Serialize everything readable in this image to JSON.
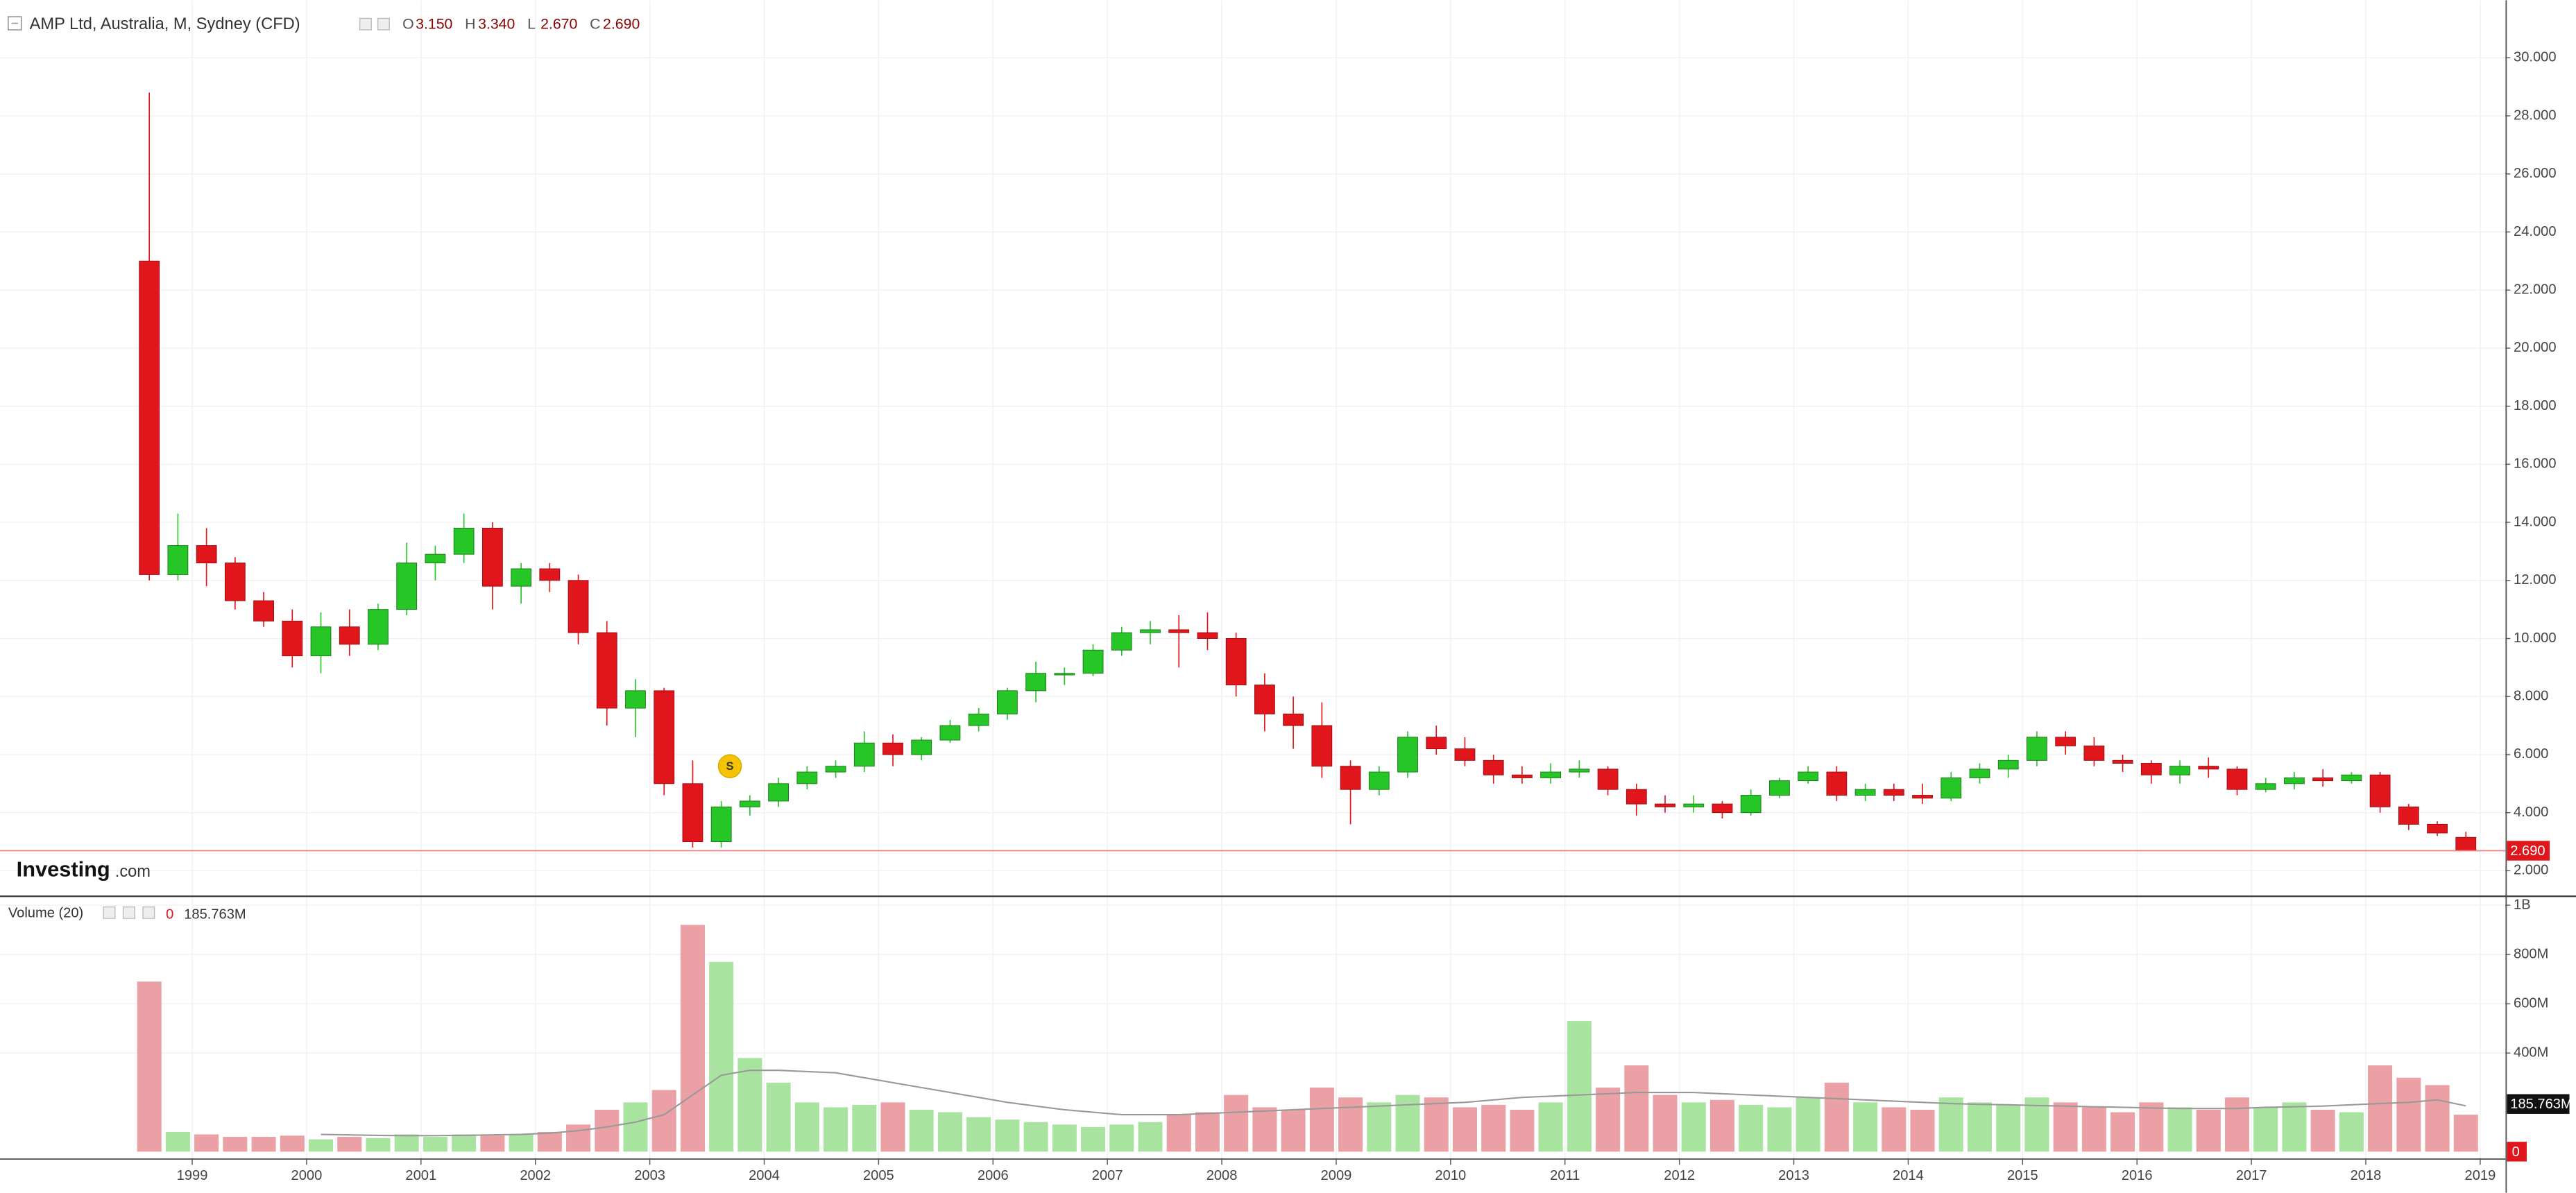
{
  "header": {
    "title": "AMP Ltd, Australia, M, Sydney (CFD)",
    "ohlc": [
      {
        "key": "O",
        "text": "3.150"
      },
      {
        "key": "H",
        "text": "3.340"
      },
      {
        "key": "L",
        "text": "2.670"
      },
      {
        "key": "C",
        "text": "2.690"
      }
    ]
  },
  "logo": {
    "brand": "Investing",
    "suffix": ".com"
  },
  "volume_legend": {
    "title": "Volume (20)",
    "current": "0",
    "ma": "185.763M"
  },
  "chart_data": [
    {
      "type": "candlestick",
      "x": [
        1998.5,
        1998.75,
        1999,
        1999.25,
        1999.5,
        1999.75,
        2000,
        2000.25,
        2000.5,
        2000.75,
        2001,
        2001.25,
        2001.5,
        2001.75,
        2002,
        2002.25,
        2002.5,
        2002.75,
        2003,
        2003.25,
        2003.5,
        2003.75,
        2004,
        2004.25,
        2004.5,
        2004.75,
        2005,
        2005.25,
        2005.5,
        2005.75,
        2006,
        2006.25,
        2006.5,
        2006.75,
        2007,
        2007.25,
        2007.5,
        2007.75,
        2008,
        2008.25,
        2008.5,
        2008.75,
        2009,
        2009.25,
        2009.5,
        2009.75,
        2010,
        2010.25,
        2010.5,
        2010.75,
        2011,
        2011.25,
        2011.5,
        2011.75,
        2012,
        2012.25,
        2012.5,
        2012.75,
        2013,
        2013.25,
        2013.5,
        2013.75,
        2014,
        2014.25,
        2014.5,
        2014.75,
        2015,
        2015.25,
        2015.5,
        2015.75,
        2016,
        2016.25,
        2016.5,
        2016.75,
        2017,
        2017.25,
        2017.5,
        2017.75,
        2018,
        2018.25,
        2018.5,
        2018.75
      ],
      "ohlc": [
        [
          23.0,
          28.8,
          12.0,
          12.2
        ],
        [
          12.2,
          14.3,
          12.0,
          13.2
        ],
        [
          13.2,
          13.8,
          11.8,
          12.6
        ],
        [
          12.6,
          12.8,
          11.0,
          11.3
        ],
        [
          11.3,
          11.6,
          10.4,
          10.6
        ],
        [
          10.6,
          11.0,
          9.0,
          9.4
        ],
        [
          9.4,
          10.9,
          8.8,
          10.4
        ],
        [
          10.4,
          11.0,
          9.4,
          9.8
        ],
        [
          9.8,
          11.2,
          9.6,
          11.0
        ],
        [
          11.0,
          13.3,
          10.8,
          12.6
        ],
        [
          12.6,
          13.2,
          12.0,
          12.9
        ],
        [
          12.9,
          14.3,
          12.6,
          13.8
        ],
        [
          13.8,
          14.0,
          11.0,
          11.8
        ],
        [
          11.8,
          12.6,
          11.2,
          12.4
        ],
        [
          12.4,
          12.6,
          11.6,
          12.0
        ],
        [
          12.0,
          12.2,
          9.8,
          10.2
        ],
        [
          10.2,
          10.6,
          7.0,
          7.6
        ],
        [
          7.6,
          8.6,
          6.6,
          8.2
        ],
        [
          8.2,
          8.3,
          4.6,
          5.0
        ],
        [
          5.0,
          5.8,
          2.8,
          3.0
        ],
        [
          3.0,
          4.4,
          2.8,
          4.2
        ],
        [
          4.2,
          4.6,
          3.9,
          4.4
        ],
        [
          4.4,
          5.2,
          4.2,
          5.0
        ],
        [
          5.0,
          5.6,
          4.8,
          5.4
        ],
        [
          5.4,
          5.8,
          5.2,
          5.6
        ],
        [
          5.6,
          6.8,
          5.4,
          6.4
        ],
        [
          6.4,
          6.7,
          5.6,
          6.0
        ],
        [
          6.0,
          6.6,
          5.8,
          6.5
        ],
        [
          6.5,
          7.2,
          6.4,
          7.0
        ],
        [
          7.0,
          7.6,
          6.8,
          7.4
        ],
        [
          7.4,
          8.3,
          7.2,
          8.2
        ],
        [
          8.2,
          9.2,
          7.8,
          8.8
        ],
        [
          8.8,
          9.0,
          8.4,
          8.8
        ],
        [
          8.8,
          9.8,
          8.7,
          9.6
        ],
        [
          9.6,
          10.4,
          9.4,
          10.2
        ],
        [
          10.2,
          10.6,
          9.8,
          10.3
        ],
        [
          10.3,
          10.8,
          9.0,
          10.2
        ],
        [
          10.2,
          10.9,
          9.6,
          10.0
        ],
        [
          10.0,
          10.2,
          8.0,
          8.4
        ],
        [
          8.4,
          8.8,
          6.8,
          7.4
        ],
        [
          7.4,
          8.0,
          6.2,
          7.0
        ],
        [
          7.0,
          7.8,
          5.2,
          5.6
        ],
        [
          5.6,
          5.8,
          3.6,
          4.8
        ],
        [
          4.8,
          5.6,
          4.6,
          5.4
        ],
        [
          5.4,
          6.8,
          5.2,
          6.6
        ],
        [
          6.6,
          7.0,
          6.0,
          6.2
        ],
        [
          6.2,
          6.6,
          5.6,
          5.8
        ],
        [
          5.8,
          6.0,
          5.0,
          5.3
        ],
        [
          5.3,
          5.6,
          5.0,
          5.2
        ],
        [
          5.2,
          5.7,
          5.0,
          5.4
        ],
        [
          5.4,
          5.8,
          5.2,
          5.5
        ],
        [
          5.5,
          5.6,
          4.6,
          4.8
        ],
        [
          4.8,
          5.0,
          3.9,
          4.3
        ],
        [
          4.3,
          4.6,
          4.0,
          4.2
        ],
        [
          4.2,
          4.6,
          4.0,
          4.3
        ],
        [
          4.3,
          4.4,
          3.8,
          4.0
        ],
        [
          4.0,
          4.8,
          3.9,
          4.6
        ],
        [
          4.6,
          5.2,
          4.5,
          5.1
        ],
        [
          5.1,
          5.6,
          5.0,
          5.4
        ],
        [
          5.4,
          5.6,
          4.4,
          4.6
        ],
        [
          4.6,
          5.0,
          4.4,
          4.8
        ],
        [
          4.8,
          5.0,
          4.4,
          4.6
        ],
        [
          4.6,
          5.0,
          4.3,
          4.5
        ],
        [
          4.5,
          5.4,
          4.4,
          5.2
        ],
        [
          5.2,
          5.7,
          5.0,
          5.5
        ],
        [
          5.5,
          6.0,
          5.2,
          5.8
        ],
        [
          5.8,
          6.8,
          5.6,
          6.6
        ],
        [
          6.6,
          6.8,
          6.0,
          6.3
        ],
        [
          6.3,
          6.6,
          5.6,
          5.8
        ],
        [
          5.8,
          6.0,
          5.4,
          5.7
        ],
        [
          5.7,
          5.8,
          5.0,
          5.3
        ],
        [
          5.3,
          5.8,
          5.0,
          5.6
        ],
        [
          5.6,
          5.9,
          5.2,
          5.5
        ],
        [
          5.5,
          5.6,
          4.6,
          4.8
        ],
        [
          4.8,
          5.2,
          4.7,
          5.0
        ],
        [
          5.0,
          5.4,
          4.8,
          5.2
        ],
        [
          5.2,
          5.5,
          4.9,
          5.1
        ],
        [
          5.1,
          5.4,
          5.0,
          5.3
        ],
        [
          5.3,
          5.4,
          4.0,
          4.2
        ],
        [
          4.2,
          4.3,
          3.4,
          3.6
        ],
        [
          3.6,
          3.7,
          3.2,
          3.3
        ],
        [
          3.15,
          3.34,
          2.67,
          2.69
        ]
      ],
      "up_color": "#26c626",
      "down_color": "#e0161c",
      "xlim": [
        1997.32,
        2019.22
      ],
      "xticks": [
        1999,
        2000,
        2001,
        2002,
        2003,
        2004,
        2005,
        2006,
        2007,
        2008,
        2009,
        2010,
        2011,
        2012,
        2013,
        2014,
        2015,
        2016,
        2017,
        2018,
        2019
      ],
      "ylim": [
        1.15,
        31.98
      ],
      "yticks": [
        {
          "value": 2,
          "label": "2.000"
        },
        {
          "value": 4,
          "label": "4.000"
        },
        {
          "value": 6,
          "label": "6.000"
        },
        {
          "value": 8,
          "label": "8.000"
        },
        {
          "value": 10,
          "label": "10.000"
        },
        {
          "value": 12,
          "label": "12.000"
        },
        {
          "value": 14,
          "label": "14.000"
        },
        {
          "value": 16,
          "label": "16.000"
        },
        {
          "value": 18,
          "label": "18.000"
        },
        {
          "value": 20,
          "label": "20.000"
        },
        {
          "value": 22,
          "label": "22.000"
        },
        {
          "value": 24,
          "label": "24.000"
        },
        {
          "value": 26,
          "label": "26.000"
        },
        {
          "value": 28,
          "label": "28.000"
        },
        {
          "value": 30,
          "label": "30.000"
        }
      ],
      "last_price": {
        "value": 2.69,
        "label": "2.690"
      },
      "markers": [
        {
          "x": 2003.7,
          "y": 5.6,
          "label": "S"
        }
      ],
      "grid": true
    },
    {
      "type": "bar",
      "values": [
        690,
        80,
        70,
        60,
        60,
        65,
        50,
        60,
        55,
        70,
        60,
        70,
        65,
        70,
        80,
        110,
        170,
        200,
        250,
        920,
        770,
        380,
        280,
        200,
        180,
        190,
        200,
        170,
        160,
        140,
        130,
        120,
        110,
        100,
        110,
        120,
        150,
        160,
        230,
        180,
        170,
        260,
        220,
        200,
        230,
        220,
        180,
        190,
        170,
        200,
        530,
        260,
        350,
        230,
        200,
        210,
        190,
        180,
        220,
        280,
        200,
        180,
        170,
        220,
        200,
        190,
        220,
        200,
        180,
        160,
        200,
        180,
        170,
        220,
        180,
        200,
        170,
        160,
        350,
        300,
        270,
        150
      ],
      "up_color": "#a8e4a0",
      "down_color": "#eba0a6",
      "ma": [
        null,
        null,
        null,
        null,
        null,
        null,
        70,
        68,
        66,
        65,
        65,
        66,
        68,
        70,
        75,
        85,
        100,
        120,
        150,
        230,
        310,
        330,
        330,
        325,
        320,
        300,
        280,
        260,
        240,
        220,
        200,
        185,
        170,
        160,
        150,
        150,
        150,
        155,
        160,
        165,
        170,
        175,
        180,
        185,
        190,
        195,
        200,
        210,
        220,
        225,
        230,
        235,
        240,
        240,
        240,
        235,
        230,
        225,
        220,
        215,
        210,
        205,
        200,
        195,
        192,
        190,
        187,
        185,
        182,
        180,
        177,
        175,
        175,
        175,
        180,
        182,
        185,
        190,
        195,
        200,
        210,
        185.763
      ],
      "ma_color": "#999999",
      "ylim": [
        0,
        1033
      ],
      "yticks": [
        {
          "value": 400,
          "label": "400M"
        },
        {
          "value": 600,
          "label": "600M"
        },
        {
          "value": 800,
          "label": "800M"
        },
        {
          "value": 1000,
          "label": "1B"
        }
      ]
    }
  ]
}
